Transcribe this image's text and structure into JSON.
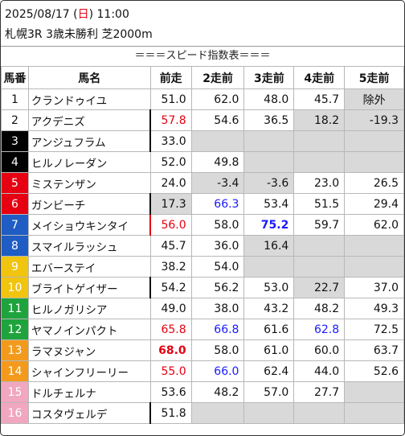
{
  "header": {
    "date_pre": "2025/08/17 (",
    "weekday": "日",
    "date_post": ") 11:00",
    "race_info": "札幌3R 3歳未勝利 芝2000m",
    "banner": "＝＝＝スピード指数表＝＝＝"
  },
  "columns": [
    "馬番",
    "馬名",
    "前走",
    "2走前",
    "3走前",
    "4走前",
    "5走前"
  ],
  "colors": {
    "red": "#e60012",
    "blue": "#1a1aff",
    "grey": "#d9d9d9",
    "waku": [
      "#ffffff",
      "#ffffff",
      "#000000",
      "#000000",
      "#e60012",
      "#e60012",
      "#1f5cc4",
      "#1f5cc4",
      "#f1c40f",
      "#f1c40f",
      "#1fa33c",
      "#1fa33c",
      "#f39a1d",
      "#f39a1d",
      "#f1a7c0",
      "#f1a7c0"
    ],
    "waku_text": [
      "#111111",
      "#111111",
      "#ffffff",
      "#ffffff",
      "#ffffff",
      "#ffffff",
      "#ffffff",
      "#ffffff",
      "#ffffff",
      "#ffffff",
      "#ffffff",
      "#ffffff",
      "#ffffff",
      "#ffffff",
      "#ffffff",
      "#ffffff"
    ]
  },
  "rows": [
    {
      "num": "1",
      "name": "クランドゥイユ",
      "vals": [
        {
          "v": "51.0"
        },
        {
          "v": "62.0"
        },
        {
          "v": "48.0"
        },
        {
          "v": "45.7"
        },
        {
          "v": "除外",
          "g": true,
          "c": true
        }
      ]
    },
    {
      "num": "2",
      "name": "アクデニズ",
      "bar": "black",
      "vals": [
        {
          "v": "57.8",
          "col": "red"
        },
        {
          "v": "54.6"
        },
        {
          "v": "36.5"
        },
        {
          "v": "18.2",
          "g": true
        },
        {
          "v": "-19.3",
          "g": true
        }
      ]
    },
    {
      "num": "3",
      "name": "アンジュフラム",
      "bar": "black",
      "vals": [
        {
          "v": "33.0"
        },
        {
          "e": true
        },
        {
          "e": true
        },
        {
          "e": true
        },
        {
          "e": true
        }
      ]
    },
    {
      "num": "4",
      "name": "ヒルノレーダン",
      "vals": [
        {
          "v": "52.0"
        },
        {
          "v": "49.8"
        },
        {
          "e": true
        },
        {
          "e": true
        },
        {
          "e": true
        }
      ]
    },
    {
      "num": "5",
      "name": "ミステンザン",
      "vals": [
        {
          "v": "24.0"
        },
        {
          "v": "-3.4",
          "g": true
        },
        {
          "v": "-3.6",
          "g": true
        },
        {
          "v": "23.0"
        },
        {
          "v": "26.5"
        }
      ]
    },
    {
      "num": "6",
      "name": "ガンビーチ",
      "bar": "black",
      "vals": [
        {
          "v": "17.3",
          "g": true
        },
        {
          "v": "66.3",
          "col": "blue"
        },
        {
          "v": "53.4"
        },
        {
          "v": "51.5"
        },
        {
          "v": "29.4"
        }
      ]
    },
    {
      "num": "7",
      "name": "メイショウキンタイ",
      "bar": "red",
      "vals": [
        {
          "v": "56.0",
          "col": "red"
        },
        {
          "v": "58.0"
        },
        {
          "v": "75.2",
          "col": "blue",
          "b": true
        },
        {
          "v": "59.7"
        },
        {
          "v": "62.0"
        }
      ]
    },
    {
      "num": "8",
      "name": "スマイルラッシュ",
      "vals": [
        {
          "v": "45.7"
        },
        {
          "v": "36.0"
        },
        {
          "v": "16.4",
          "g": true
        },
        {
          "e": true
        },
        {
          "e": true
        }
      ]
    },
    {
      "num": "9",
      "name": "エバーステイ",
      "vals": [
        {
          "v": "38.2"
        },
        {
          "v": "54.0"
        },
        {
          "e": true
        },
        {
          "e": true
        },
        {
          "e": true
        }
      ]
    },
    {
      "num": "10",
      "name": "ブライトゲイザー",
      "bar": "black",
      "vals": [
        {
          "v": "54.2"
        },
        {
          "v": "56.2"
        },
        {
          "v": "53.0"
        },
        {
          "v": "22.7",
          "g": true
        },
        {
          "v": "37.0"
        }
      ]
    },
    {
      "num": "11",
      "name": "ヒルノガリシア",
      "vals": [
        {
          "v": "49.0"
        },
        {
          "v": "38.0"
        },
        {
          "v": "43.2"
        },
        {
          "v": "48.2"
        },
        {
          "v": "49.3"
        }
      ]
    },
    {
      "num": "12",
      "name": "ヤマノインパクト",
      "vals": [
        {
          "v": "65.8",
          "col": "red"
        },
        {
          "v": "66.8",
          "col": "blue"
        },
        {
          "v": "61.6"
        },
        {
          "v": "62.8",
          "col": "blue"
        },
        {
          "v": "72.5"
        }
      ]
    },
    {
      "num": "13",
      "name": "ラマヌジャン",
      "vals": [
        {
          "v": "68.0",
          "col": "red",
          "b": true
        },
        {
          "v": "58.0"
        },
        {
          "v": "61.0"
        },
        {
          "v": "60.0"
        },
        {
          "v": "63.7"
        }
      ]
    },
    {
      "num": "14",
      "name": "シャインフリーリー",
      "vals": [
        {
          "v": "55.0",
          "col": "red"
        },
        {
          "v": "66.0",
          "col": "blue"
        },
        {
          "v": "62.4"
        },
        {
          "v": "44.0"
        },
        {
          "v": "52.6"
        }
      ]
    },
    {
      "num": "15",
      "name": "ドルチェルナ",
      "vals": [
        {
          "v": "53.6"
        },
        {
          "v": "48.2"
        },
        {
          "v": "57.0"
        },
        {
          "v": "27.7"
        },
        {
          "e": true
        }
      ]
    },
    {
      "num": "16",
      "name": "コスタヴェルデ",
      "bar": "black",
      "vals": [
        {
          "v": "51.8"
        },
        {
          "e": true
        },
        {
          "e": true
        },
        {
          "e": true
        },
        {
          "e": true
        }
      ]
    }
  ]
}
